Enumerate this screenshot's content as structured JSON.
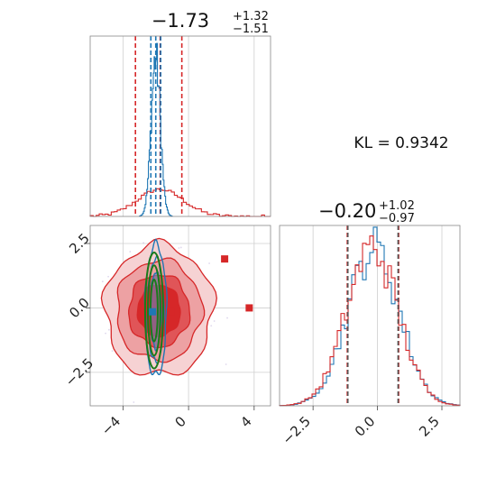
{
  "colors": {
    "red": "#d62728",
    "blue": "#1f77b4",
    "green": "#1a7a1a",
    "grid": "#cfcfcf"
  },
  "annotation": {
    "kl": "KL = 0.9342"
  },
  "chart_data": [
    {
      "type": "histogram",
      "panel": "top-left (parameter 1 marginal)",
      "title": {
        "median": "−1.73",
        "plus": "+1.32",
        "minus": "−1.51"
      },
      "xlim": [
        -6,
        5
      ],
      "grid": true,
      "series": [
        {
          "color": "red",
          "kind": "step histogram (broad)",
          "center": -1.73,
          "quantiles": [
            -3.24,
            -1.73,
            -0.41
          ]
        },
        {
          "color": "blue",
          "kind": "step histogram (narrow)",
          "center": -2.0,
          "quantiles": [
            -2.3,
            -2.0,
            -1.7
          ]
        }
      ]
    },
    {
      "type": "contour",
      "panel": "bottom-left (2D joint)",
      "xlim": [
        -6,
        5
      ],
      "ylim": [
        -3.8,
        3.2
      ],
      "x_ticks": [
        "−4",
        "0",
        "4"
      ],
      "y_ticks": [
        "−2.5",
        "0.0",
        "2.5"
      ],
      "grid": true,
      "series": [
        {
          "color": "red",
          "kind": "filled density contours",
          "center": [
            -1.8,
            -0.1
          ]
        },
        {
          "color": "blue",
          "kind": "narrow density contours",
          "center": [
            -2.0,
            -0.1
          ]
        },
        {
          "color": "green",
          "kind": "ellipses",
          "center": [
            -2.1,
            -0.1
          ]
        }
      ],
      "points": [
        {
          "x": 2.2,
          "y": 1.9,
          "color": "red"
        },
        {
          "x": 3.7,
          "y": 0.0,
          "color": "red"
        },
        {
          "x": -1.1,
          "y": -0.15,
          "color": "red"
        },
        {
          "x": -2.2,
          "y": -0.15,
          "color": "blue"
        }
      ]
    },
    {
      "type": "histogram",
      "panel": "bottom-right (parameter 2 marginal)",
      "title": {
        "median": "−0.20",
        "plus": "+1.02",
        "minus": "−0.97"
      },
      "xlim": [
        -3.8,
        3.2
      ],
      "x_ticks": [
        "−2.5",
        "0.0",
        "2.5"
      ],
      "grid": true,
      "series": [
        {
          "color": "red",
          "kind": "step histogram",
          "center": -0.2,
          "quantiles": [
            -1.17,
            -0.2,
            0.82
          ]
        },
        {
          "color": "blue",
          "kind": "step histogram",
          "center": -0.15,
          "quantiles": [
            -1.15,
            -0.15,
            0.8
          ]
        }
      ]
    }
  ]
}
